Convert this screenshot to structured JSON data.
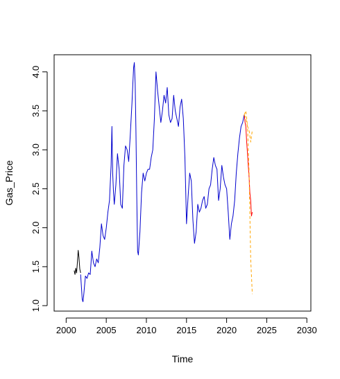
{
  "chart_data": {
    "type": "line",
    "title": "",
    "xlabel": "Time",
    "ylabel": "Gas_Price",
    "xlim": [
      2000,
      2030
    ],
    "ylim": [
      1.0,
      4.15
    ],
    "xticks": [
      2000,
      2005,
      2010,
      2015,
      2020,
      2025,
      2030
    ],
    "yticks": [
      1.0,
      1.5,
      2.0,
      2.5,
      3.0,
      3.5,
      4.0
    ],
    "grid": false,
    "legend": "none",
    "colors": {
      "history": "#0000cd",
      "history_start": "#000000",
      "actual_recent": "#ff0000",
      "forecast_band": "#ffa500"
    },
    "series": [
      {
        "style": "solid",
        "color_key": "history_start",
        "x": [
          2001.0,
          2001.1,
          2001.2,
          2001.3,
          2001.4,
          2001.5,
          2001.6,
          2001.7,
          2001.8
        ],
        "y": [
          1.45,
          1.4,
          1.48,
          1.42,
          1.55,
          1.71,
          1.62,
          1.47,
          1.42
        ]
      },
      {
        "style": "solid",
        "color_key": "history",
        "x": [
          2001.8,
          2002.0,
          2002.1,
          2002.2,
          2002.4,
          2002.6,
          2002.8,
          2003.0,
          2003.1,
          2003.2,
          2003.4,
          2003.6,
          2003.8,
          2004.0,
          2004.2,
          2004.4,
          2004.6,
          2004.8,
          2005.0,
          2005.2,
          2005.4,
          2005.6,
          2005.7,
          2005.8,
          2005.9,
          2006.0,
          2006.2,
          2006.4,
          2006.6,
          2006.8,
          2007.0,
          2007.2,
          2007.4,
          2007.6,
          2007.8,
          2008.0,
          2008.2,
          2008.4,
          2008.5,
          2008.6,
          2008.7,
          2008.8,
          2008.9,
          2009.0,
          2009.2,
          2009.4,
          2009.6,
          2009.8,
          2010.0,
          2010.2,
          2010.4,
          2010.6,
          2010.8,
          2011.0,
          2011.2,
          2011.4,
          2011.6,
          2011.8,
          2012.0,
          2012.2,
          2012.4,
          2012.6,
          2012.8,
          2013.0,
          2013.2,
          2013.4,
          2013.6,
          2013.8,
          2014.0,
          2014.2,
          2014.4,
          2014.6,
          2014.8,
          2015.0,
          2015.2,
          2015.4,
          2015.6,
          2015.8,
          2016.0,
          2016.2,
          2016.4,
          2016.6,
          2016.8,
          2017.0,
          2017.2,
          2017.4,
          2017.6,
          2017.8,
          2018.0,
          2018.2,
          2018.4,
          2018.6,
          2018.8,
          2019.0,
          2019.2,
          2019.4,
          2019.6,
          2019.8,
          2020.0,
          2020.2,
          2020.4,
          2020.6,
          2020.8,
          2021.0,
          2021.2,
          2021.4,
          2021.6,
          2021.8,
          2022.0,
          2022.2
        ],
        "y": [
          1.4,
          1.08,
          1.05,
          1.15,
          1.38,
          1.35,
          1.42,
          1.4,
          1.55,
          1.7,
          1.55,
          1.5,
          1.6,
          1.55,
          1.75,
          2.05,
          1.9,
          1.85,
          2.0,
          2.2,
          2.35,
          2.8,
          3.3,
          2.7,
          2.45,
          2.3,
          2.55,
          2.95,
          2.75,
          2.3,
          2.25,
          2.8,
          3.05,
          3.0,
          2.85,
          3.2,
          3.6,
          4.05,
          4.12,
          3.85,
          3.25,
          2.4,
          1.7,
          1.65,
          1.95,
          2.45,
          2.7,
          2.6,
          2.7,
          2.75,
          2.75,
          2.9,
          3.0,
          3.4,
          4.0,
          3.75,
          3.55,
          3.35,
          3.5,
          3.7,
          3.6,
          3.8,
          3.45,
          3.35,
          3.4,
          3.7,
          3.5,
          3.4,
          3.3,
          3.55,
          3.65,
          3.4,
          2.9,
          2.05,
          2.4,
          2.7,
          2.6,
          2.1,
          1.8,
          1.95,
          2.3,
          2.2,
          2.25,
          2.35,
          2.4,
          2.25,
          2.3,
          2.5,
          2.55,
          2.75,
          2.9,
          2.8,
          2.75,
          2.35,
          2.5,
          2.8,
          2.65,
          2.55,
          2.5,
          2.2,
          1.85,
          2.05,
          2.15,
          2.35,
          2.7,
          2.95,
          3.15,
          3.3,
          3.35,
          3.45
        ]
      },
      {
        "style": "solid",
        "color_key": "actual_recent",
        "x": [
          2022.2,
          2022.3,
          2022.4,
          2022.5,
          2022.6,
          2022.7,
          2022.8,
          2022.9,
          2023.0,
          2023.1,
          2023.2
        ],
        "y": [
          3.45,
          3.35,
          3.3,
          3.1,
          2.95,
          2.8,
          2.65,
          2.45,
          2.35,
          2.15,
          2.2
        ]
      },
      {
        "style": "dashed",
        "color_key": "forecast_band",
        "x": [
          2022.2,
          2022.4,
          2022.6,
          2022.8,
          2023.0,
          2023.2
        ],
        "y": [
          3.45,
          3.4,
          3.3,
          2.7,
          1.6,
          1.15
        ]
      },
      {
        "style": "dashed",
        "color_key": "forecast_band",
        "x": [
          2022.2,
          2022.4,
          2022.6,
          2022.8,
          2023.0,
          2023.2
        ],
        "y": [
          3.45,
          3.5,
          3.3,
          3.25,
          3.1,
          3.25
        ]
      }
    ]
  }
}
